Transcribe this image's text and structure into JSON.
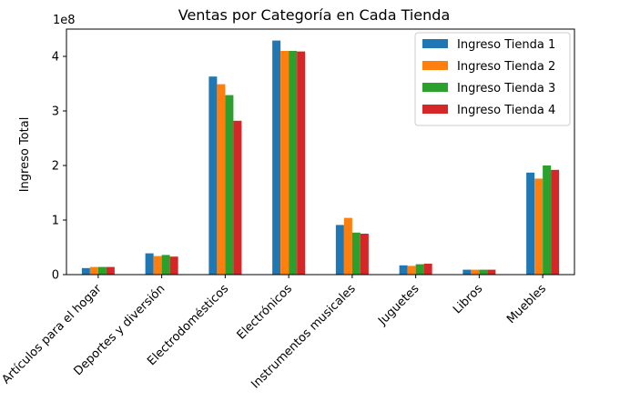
{
  "chart_data": {
    "type": "bar",
    "title": "Ventas por Categoría en Cada Tienda",
    "xlabel": "",
    "ylabel": "Ingreso Total",
    "y_offset_text": "1e8",
    "ylim": [
      0,
      4.5
    ],
    "yticks": [
      "0",
      "1",
      "2",
      "3",
      "4"
    ],
    "categories": [
      "Artículos para el hogar",
      "Deportes y diversión",
      "Electrodomésticos",
      "Electrónicos",
      "Instrumentos musicales",
      "Juguetes",
      "Libros",
      "Muebles"
    ],
    "series": [
      {
        "name": "Ingreso Tienda 1",
        "color": "#1f77b4",
        "values": [
          0.12,
          0.39,
          3.63,
          4.29,
          0.91,
          0.17,
          0.09,
          1.87
        ]
      },
      {
        "name": "Ingreso Tienda 2",
        "color": "#ff7f0e",
        "values": [
          0.14,
          0.34,
          3.49,
          4.1,
          1.04,
          0.16,
          0.09,
          1.76
        ]
      },
      {
        "name": "Ingreso Tienda 3",
        "color": "#2ca02c",
        "values": [
          0.14,
          0.36,
          3.29,
          4.1,
          0.77,
          0.19,
          0.09,
          2.0
        ]
      },
      {
        "name": "Ingreso Tienda 4",
        "color": "#d62728",
        "values": [
          0.14,
          0.33,
          2.82,
          4.09,
          0.75,
          0.2,
          0.09,
          1.92
        ]
      }
    ],
    "legend_position": "top-right",
    "grid": false
  }
}
